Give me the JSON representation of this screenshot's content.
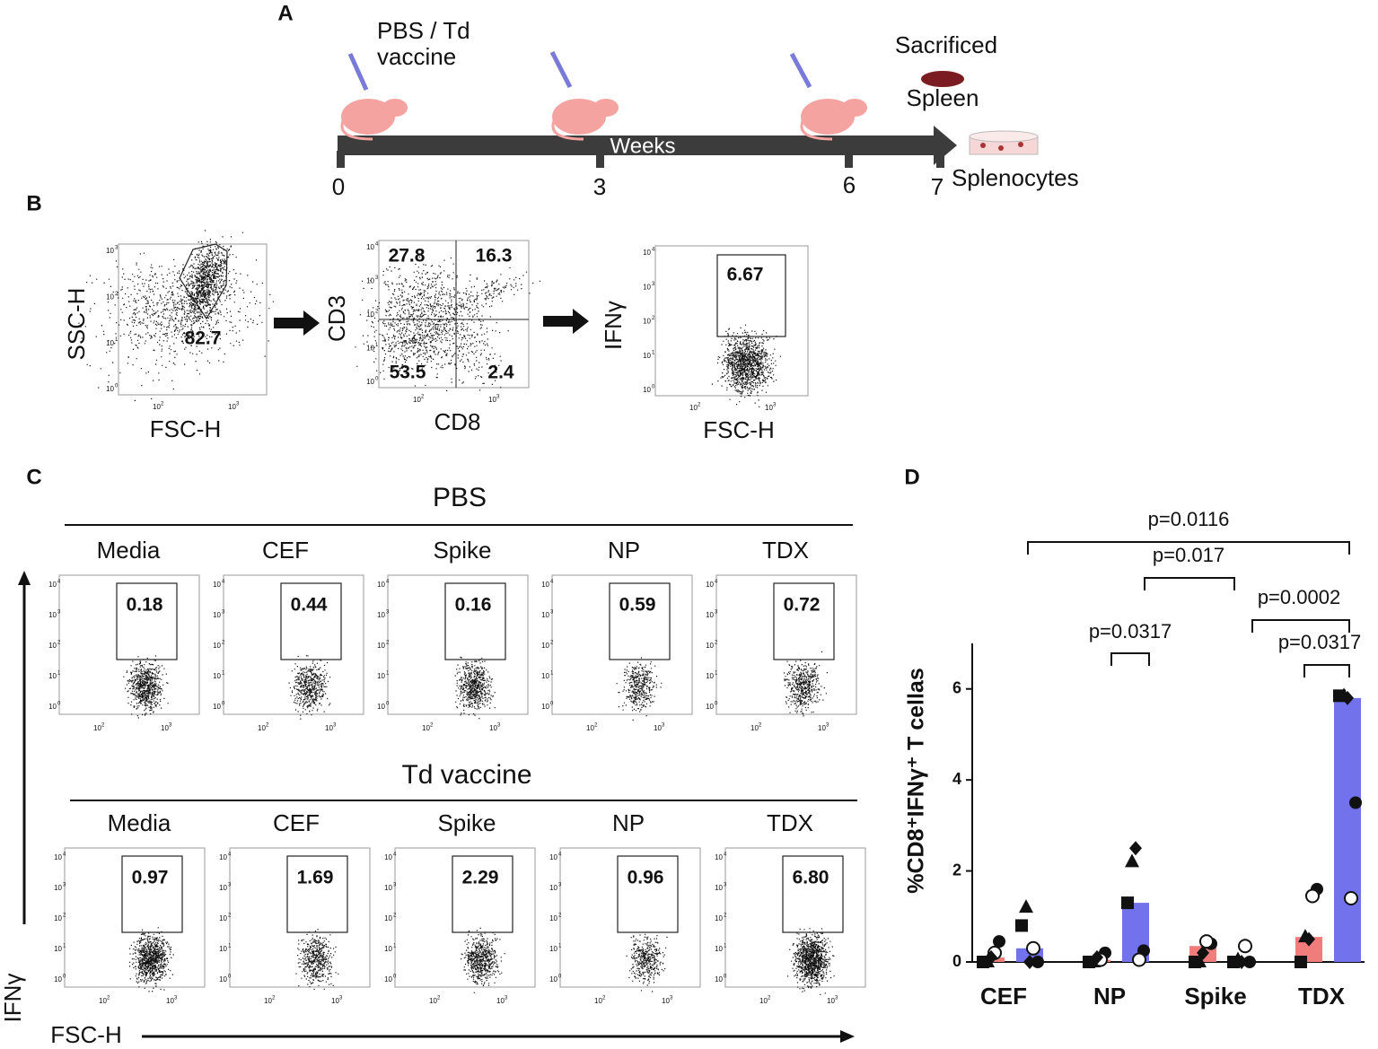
{
  "panel_labels": {
    "a": "A",
    "b": "B",
    "c": "C",
    "d": "D"
  },
  "timeline": {
    "injection_label": [
      "PBS / Td",
      "vaccine"
    ],
    "axis_label": "Weeks",
    "ticks": [
      "0",
      "3",
      "6",
      "7"
    ],
    "sacrificed": "Sacrificed",
    "spleen": "Spleen",
    "splenocytes": "Splenocytes"
  },
  "log_axis": {
    "base": "10",
    "exponents": [
      "0",
      "1",
      "2",
      "3",
      "4"
    ]
  },
  "gating": [
    {
      "x_label": "FSC-H",
      "y_label": "SSC-H",
      "gates": [
        "82.7"
      ]
    },
    {
      "x_label": "CD8",
      "y_label": "CD3",
      "gates": [
        "27.8",
        "16.3",
        "53.5",
        "2.4"
      ]
    },
    {
      "x_label": "FSC-H",
      "y_label": "IFNγ",
      "gates": [
        "6.67"
      ]
    }
  ],
  "stimulation": {
    "y_label": "IFNγ",
    "x_label": "FSC-H",
    "groups": [
      {
        "title": "PBS",
        "conditions": [
          "Media",
          "CEF",
          "Spike",
          "NP",
          "TDX"
        ],
        "gates": [
          "0.18",
          "0.44",
          "0.16",
          "0.59",
          "0.72"
        ]
      },
      {
        "title": "Td vaccine",
        "conditions": [
          "Media",
          "CEF",
          "Spike",
          "NP",
          "TDX"
        ],
        "gates": [
          "0.97",
          "1.69",
          "2.29",
          "0.96",
          "6.80"
        ]
      }
    ]
  },
  "chart_data": {
    "type": "bar",
    "y_label": "%CD8⁺IFNγ⁺ T cellas",
    "categories": [
      "CEF",
      "NP",
      "Spike",
      "TDX"
    ],
    "series": [
      {
        "color": "#f07c7c",
        "values": [
          0.1,
          0.05,
          0.35,
          0.55
        ],
        "points": [
          [
            0.0,
            0.45,
            0.0,
            0.2,
            0.1
          ],
          [
            0.0,
            0.2,
            0.0,
            0.05,
            0.1
          ],
          [
            0.0,
            0.4,
            0.0,
            0.45,
            0.2
          ],
          [
            0.0,
            1.6,
            0.55,
            1.45,
            0.5
          ]
        ]
      },
      {
        "color": "#7272ec",
        "values": [
          0.3,
          1.3,
          0.05,
          5.8
        ],
        "points": [
          [
            0.8,
            0.0,
            1.2,
            0.3,
            0.0
          ],
          [
            1.3,
            0.25,
            2.2,
            0.05,
            2.5
          ],
          [
            0.0,
            0.0,
            0.05,
            0.35,
            0.0
          ],
          [
            5.85,
            3.5,
            5.85,
            1.4,
            5.8
          ]
        ]
      }
    ],
    "markers": [
      "square",
      "circle",
      "triangle",
      "open-circle",
      "diamond"
    ],
    "ylim": [
      0,
      7
    ],
    "yticks": [
      0,
      2,
      4,
      6
    ],
    "comparisons": [
      "p=0.0116",
      "p=0.017",
      "p=0.0002",
      "p=0.0317",
      "p=0.0317"
    ]
  }
}
